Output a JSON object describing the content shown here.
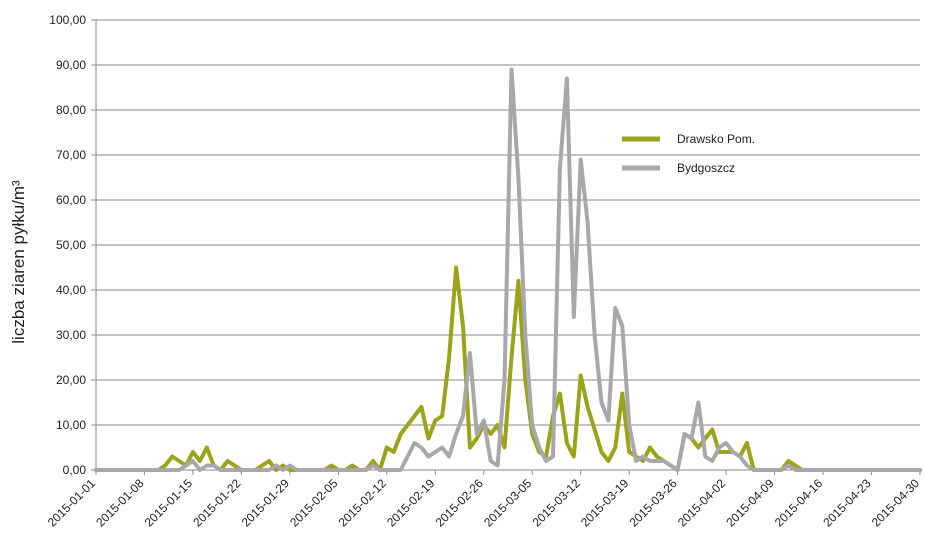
{
  "chart_data": {
    "type": "line",
    "title": "",
    "xlabel": "",
    "ylabel": "liczba ziaren pyłku/m³",
    "ylim": [
      0,
      100
    ],
    "grid": true,
    "legend_placement": "right-center",
    "y_ticks": [
      "0,00",
      "10,00",
      "20,00",
      "30,00",
      "40,00",
      "50,00",
      "60,00",
      "70,00",
      "80,00",
      "90,00",
      "100,00"
    ],
    "x_start": "2015-01-01",
    "x_ticks": [
      "2015-01-01",
      "2015-01-08",
      "2015-01-15",
      "2015-01-22",
      "2015-01-29",
      "2015-02-05",
      "2015-02-12",
      "2015-02-19",
      "2015-02-26",
      "2015-03-05",
      "2015-03-12",
      "2015-03-19",
      "2015-03-26",
      "2015-04-02",
      "2015-04-09",
      "2015-04-16",
      "2015-04-23",
      "2015-04-30"
    ],
    "series": [
      {
        "name": "Drawsko Pom.",
        "color": "#9aa31a",
        "values": [
          0,
          0,
          0,
          0,
          0,
          0,
          0,
          0,
          0,
          0,
          1,
          3,
          2,
          1,
          4,
          2,
          5,
          1,
          0,
          2,
          1,
          0,
          0,
          0,
          1,
          2,
          0,
          1,
          0,
          0,
          0,
          0,
          0,
          0,
          1,
          0,
          0,
          1,
          0,
          0,
          2,
          0,
          5,
          4,
          8,
          10,
          12,
          14,
          7,
          11,
          12,
          25,
          45,
          32,
          5,
          7,
          10,
          8,
          10,
          5,
          25,
          42,
          20,
          8,
          4,
          3,
          12,
          17,
          6,
          3,
          21,
          14,
          9,
          4,
          2,
          5,
          17,
          4,
          3,
          2,
          5,
          3,
          2,
          1,
          0,
          8,
          7,
          5,
          7,
          9,
          4,
          4,
          4,
          3,
          6,
          0,
          0,
          0,
          0,
          0,
          2,
          1,
          0,
          0,
          0,
          0,
          0,
          0,
          0,
          0,
          0,
          0,
          0,
          0,
          0,
          0,
          0,
          0,
          0,
          0
        ]
      },
      {
        "name": "Bydgoszcz",
        "color": "#a8a8ab",
        "values": [
          0,
          0,
          0,
          0,
          0,
          0,
          0,
          0,
          0,
          0,
          0,
          0,
          0,
          1,
          2,
          0,
          1,
          1,
          0,
          0,
          0,
          0,
          0,
          0,
          0,
          0,
          1,
          0,
          1,
          0,
          0,
          0,
          0,
          0,
          0,
          0,
          0,
          0,
          0,
          0,
          1,
          0,
          0,
          0,
          0,
          3,
          6,
          5,
          3,
          4,
          5,
          3,
          8,
          12,
          26,
          8,
          11,
          2,
          1,
          20,
          89,
          65,
          30,
          10,
          5,
          2,
          3,
          67,
          87,
          34,
          69,
          55,
          30,
          15,
          11,
          36,
          32,
          10,
          2,
          3,
          2,
          2,
          2,
          1,
          0,
          8,
          7,
          15,
          3,
          2,
          5,
          6,
          4,
          3,
          1,
          0,
          0,
          0,
          0,
          0,
          1,
          0,
          0,
          0,
          0,
          0,
          0,
          0,
          0,
          0,
          0,
          0,
          0,
          0,
          0,
          0,
          0,
          0,
          0,
          0
        ]
      }
    ]
  }
}
